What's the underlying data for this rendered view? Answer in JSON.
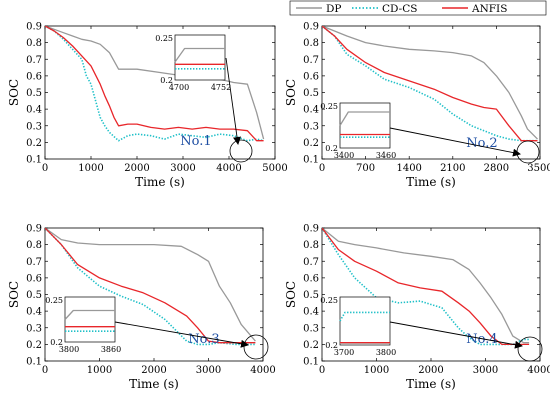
{
  "legend": {
    "items": [
      {
        "label": "DP",
        "color": "#999999",
        "dash": "solid"
      },
      {
        "label": "CD-CS",
        "color": "#1fc0c8",
        "dash": "dotted"
      },
      {
        "label": "ANFIS",
        "color": "#e8262a",
        "dash": "solid"
      }
    ]
  },
  "chart_data": [
    {
      "type": "line",
      "tag": "No.1",
      "xlabel": "Time (s)",
      "ylabel": "SOC",
      "xlim": [
        0,
        5000
      ],
      "ylim": [
        0.1,
        0.9
      ],
      "xticks": [
        0,
        1000,
        2000,
        3000,
        4000,
        5000
      ],
      "yticks": [
        0.1,
        0.2,
        0.3,
        0.4,
        0.5,
        0.6,
        0.7,
        0.8,
        0.9
      ],
      "series": [
        {
          "name": "DP",
          "x": [
            0,
            200,
            400,
            600,
            800,
            1000,
            1200,
            1400,
            1600,
            1800,
            2000,
            2500,
            3000,
            3500,
            3800,
            4100,
            4400,
            4600,
            4752
          ],
          "y": [
            0.9,
            0.88,
            0.86,
            0.84,
            0.82,
            0.81,
            0.79,
            0.74,
            0.64,
            0.64,
            0.64,
            0.62,
            0.6,
            0.58,
            0.58,
            0.56,
            0.55,
            0.38,
            0.22
          ]
        },
        {
          "name": "CD-CS",
          "x": [
            0,
            200,
            400,
            600,
            800,
            900,
            1000,
            1100,
            1200,
            1300,
            1400,
            1600,
            1800,
            2000,
            2300,
            2600,
            2900,
            3200,
            3500,
            3800,
            4100,
            4400,
            4600,
            4752
          ],
          "y": [
            0.9,
            0.87,
            0.82,
            0.76,
            0.7,
            0.6,
            0.55,
            0.45,
            0.35,
            0.3,
            0.26,
            0.21,
            0.24,
            0.25,
            0.24,
            0.22,
            0.25,
            0.24,
            0.23,
            0.25,
            0.24,
            0.21,
            0.22,
            0.21
          ]
        },
        {
          "name": "ANFIS",
          "x": [
            0,
            200,
            400,
            600,
            800,
            1000,
            1200,
            1300,
            1400,
            1500,
            1600,
            1800,
            2000,
            2300,
            2600,
            2900,
            3200,
            3500,
            3800,
            4100,
            4400,
            4600,
            4752
          ],
          "y": [
            0.9,
            0.87,
            0.83,
            0.78,
            0.72,
            0.66,
            0.55,
            0.48,
            0.42,
            0.35,
            0.3,
            0.31,
            0.31,
            0.29,
            0.28,
            0.29,
            0.28,
            0.29,
            0.28,
            0.28,
            0.27,
            0.21,
            0.21
          ]
        }
      ],
      "inset": {
        "xlim": [
          4700,
          4752
        ],
        "ylim": [
          0.2,
          0.25
        ],
        "xtick_labels": [
          "4700",
          "4752"
        ],
        "ytick_labels": [
          "0.2",
          "0.25"
        ],
        "series": [
          {
            "name": "DP",
            "x": [
              4700,
              4710,
              4752
            ],
            "y": [
              0.22,
              0.235,
              0.235
            ]
          },
          {
            "name": "CD-CS",
            "x": [
              4700,
              4752
            ],
            "y": [
              0.2125,
              0.2125
            ]
          },
          {
            "name": "ANFIS",
            "x": [
              4700,
              4752
            ],
            "y": [
              0.2175,
              0.2175
            ]
          }
        ]
      }
    },
    {
      "type": "line",
      "tag": "No.2",
      "xlabel": "Time (s)",
      "ylabel": "SOC",
      "xlim": [
        0,
        3500
      ],
      "ylim": [
        0.1,
        0.9
      ],
      "xticks": [
        0,
        700,
        1400,
        2100,
        2800,
        3500
      ],
      "yticks": [
        0.1,
        0.2,
        0.3,
        0.4,
        0.5,
        0.6,
        0.7,
        0.8,
        0.9
      ],
      "series": [
        {
          "name": "DP",
          "x": [
            0,
            200,
            400,
            700,
            1000,
            1400,
            1800,
            2100,
            2400,
            2600,
            2800,
            3000,
            3200,
            3300,
            3460
          ],
          "y": [
            0.9,
            0.87,
            0.84,
            0.8,
            0.78,
            0.76,
            0.75,
            0.74,
            0.72,
            0.68,
            0.6,
            0.5,
            0.36,
            0.28,
            0.22
          ]
        },
        {
          "name": "CD-CS",
          "x": [
            0,
            200,
            400,
            700,
            1000,
            1400,
            1800,
            2100,
            2400,
            2600,
            2800,
            3000,
            3200,
            3460
          ],
          "y": [
            0.9,
            0.84,
            0.73,
            0.66,
            0.58,
            0.53,
            0.46,
            0.37,
            0.3,
            0.27,
            0.24,
            0.22,
            0.21,
            0.21
          ]
        },
        {
          "name": "ANFIS",
          "x": [
            0,
            200,
            400,
            700,
            1000,
            1400,
            1800,
            2100,
            2400,
            2600,
            2800,
            3000,
            3200,
            3460
          ],
          "y": [
            0.9,
            0.84,
            0.76,
            0.68,
            0.62,
            0.57,
            0.52,
            0.47,
            0.43,
            0.41,
            0.4,
            0.3,
            0.21,
            0.21
          ]
        }
      ],
      "inset": {
        "xlim": [
          3400,
          3460
        ],
        "ylim": [
          0.2,
          0.25
        ],
        "xtick_labels": [
          "3400",
          "3460"
        ],
        "ytick_labels": [
          "0.2",
          "0.25"
        ],
        "series": [
          {
            "name": "DP",
            "x": [
              3400,
              3410,
              3460
            ],
            "y": [
              0.225,
              0.24,
              0.24
            ]
          },
          {
            "name": "CD-CS",
            "x": [
              3400,
              3460
            ],
            "y": [
              0.212,
              0.212
            ]
          },
          {
            "name": "ANFIS",
            "x": [
              3400,
              3460
            ],
            "y": [
              0.215,
              0.215
            ]
          }
        ]
      }
    },
    {
      "type": "line",
      "tag": "No.3",
      "xlabel": "Time (s)",
      "ylabel": "SOC",
      "xlim": [
        0,
        4000
      ],
      "ylim": [
        0.1,
        0.9
      ],
      "xticks": [
        0,
        1000,
        2000,
        3000,
        4000
      ],
      "yticks": [
        0.1,
        0.2,
        0.3,
        0.4,
        0.5,
        0.6,
        0.7,
        0.8,
        0.9
      ],
      "series": [
        {
          "name": "DP",
          "x": [
            0,
            300,
            600,
            1000,
            1500,
            2000,
            2500,
            2800,
            3000,
            3200,
            3400,
            3600,
            3860
          ],
          "y": [
            0.9,
            0.83,
            0.81,
            0.8,
            0.8,
            0.8,
            0.79,
            0.74,
            0.7,
            0.55,
            0.45,
            0.32,
            0.22
          ]
        },
        {
          "name": "CD-CS",
          "x": [
            0,
            300,
            600,
            1000,
            1400,
            1800,
            2200,
            2600,
            2800,
            3000,
            3200,
            3500,
            3860
          ],
          "y": [
            0.9,
            0.8,
            0.66,
            0.55,
            0.49,
            0.44,
            0.35,
            0.22,
            0.2,
            0.2,
            0.21,
            0.2,
            0.2
          ]
        },
        {
          "name": "ANFIS",
          "x": [
            0,
            300,
            600,
            1000,
            1400,
            1800,
            2200,
            2600,
            2800,
            3000,
            3200,
            3500,
            3860
          ],
          "y": [
            0.9,
            0.8,
            0.68,
            0.6,
            0.55,
            0.51,
            0.45,
            0.37,
            0.3,
            0.22,
            0.21,
            0.21,
            0.21
          ]
        }
      ],
      "inset": {
        "xlim": [
          3800,
          3860
        ],
        "ylim": [
          0.2,
          0.25
        ],
        "xtick_labels": [
          "3800",
          "3860"
        ],
        "ytick_labels": [
          "0.2",
          "0.25"
        ],
        "series": [
          {
            "name": "DP",
            "x": [
              3800,
              3810,
              3860
            ],
            "y": [
              0.225,
              0.235,
              0.235
            ]
          },
          {
            "name": "CD-CS",
            "x": [
              3800,
              3860
            ],
            "y": [
              0.212,
              0.212
            ]
          },
          {
            "name": "ANFIS",
            "x": [
              3800,
              3860
            ],
            "y": [
              0.217,
              0.217
            ]
          }
        ]
      }
    },
    {
      "type": "line",
      "tag": "No.4",
      "xlabel": "Time (s)",
      "ylabel": "SOC",
      "xlim": [
        0,
        4000
      ],
      "ylim": [
        0.1,
        0.9
      ],
      "xticks": [
        0,
        1000,
        2000,
        3000,
        4000
      ],
      "yticks": [
        0.1,
        0.2,
        0.3,
        0.4,
        0.5,
        0.6,
        0.7,
        0.8,
        0.9
      ],
      "series": [
        {
          "name": "DP",
          "x": [
            0,
            300,
            600,
            1000,
            1500,
            2000,
            2400,
            2700,
            2900,
            3100,
            3300,
            3500,
            3700,
            3800
          ],
          "y": [
            0.9,
            0.82,
            0.8,
            0.78,
            0.75,
            0.73,
            0.71,
            0.65,
            0.57,
            0.48,
            0.38,
            0.25,
            0.21,
            0.21
          ]
        },
        {
          "name": "CD-CS",
          "x": [
            0,
            300,
            600,
            1000,
            1400,
            1800,
            2200,
            2500,
            2700,
            2900,
            3100,
            3300,
            3500,
            3700,
            3800
          ],
          "y": [
            0.9,
            0.74,
            0.6,
            0.48,
            0.45,
            0.46,
            0.42,
            0.3,
            0.24,
            0.2,
            0.2,
            0.2,
            0.2,
            0.23,
            0.23
          ]
        },
        {
          "name": "ANFIS",
          "x": [
            0,
            300,
            600,
            1000,
            1400,
            1800,
            2200,
            2500,
            2700,
            2900,
            3100,
            3300,
            3500,
            3700,
            3800
          ],
          "y": [
            0.9,
            0.77,
            0.7,
            0.64,
            0.57,
            0.54,
            0.52,
            0.45,
            0.4,
            0.33,
            0.25,
            0.2,
            0.2,
            0.2,
            0.2
          ]
        }
      ],
      "inset": {
        "xlim": [
          3700,
          3800
        ],
        "ylim": [
          0.2,
          0.25
        ],
        "xtick_labels": [
          "3700",
          "3800"
        ],
        "ytick_labels": [
          "0.2",
          "0.25"
        ],
        "series": [
          {
            "name": "DP",
            "x": [
              3700,
              3800
            ],
            "y": [
              0.202,
              0.202
            ]
          },
          {
            "name": "CD-CS",
            "x": [
              3700,
              3710,
              3800
            ],
            "y": [
              0.225,
              0.234,
              0.234
            ]
          },
          {
            "name": "ANFIS",
            "x": [
              3700,
              3800
            ],
            "y": [
              0.2025,
              0.2025
            ]
          }
        ]
      }
    }
  ]
}
